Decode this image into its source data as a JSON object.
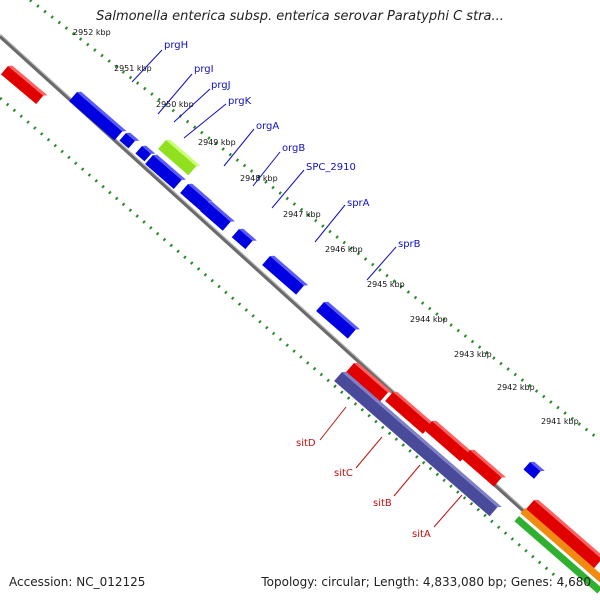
{
  "title": "Salmonella enterica subsp. enterica serovar Paratyphi C stra...",
  "footer": {
    "accession": "Accession: NC_012125",
    "topology": "Topology: circular; Length: 4,833,080 bp; Genes: 4,680"
  },
  "scale_ticks": [
    "2952 kbp",
    "2951 kbp",
    "2950 kbp",
    "2949 kbp",
    "2948 kbp",
    "2947 kbp",
    "2946 kbp",
    "2945 kbp",
    "2944 kbp",
    "2943 kbp",
    "2942 kbp",
    "2941 kbp"
  ],
  "genes_top": [
    "prgH",
    "prgI",
    "prgJ",
    "prgK",
    "orgA",
    "orgB",
    "SPC_2910",
    "sprA",
    "sprB"
  ],
  "genes_bottom": [
    "sitD",
    "sitC",
    "sitB",
    "sitA"
  ],
  "colors": {
    "backbone": "#808080",
    "forward_gene": "#0000e0",
    "reverse_gene": "#e00000",
    "highlight_gene": "#90e020",
    "sit_block": "#4a4a9a",
    "top_label": "#1010c0",
    "bottom_label": "#c01010",
    "dot_track": "#2a8a2a",
    "orange_track": "#f08a10",
    "green_track": "#30b030"
  }
}
